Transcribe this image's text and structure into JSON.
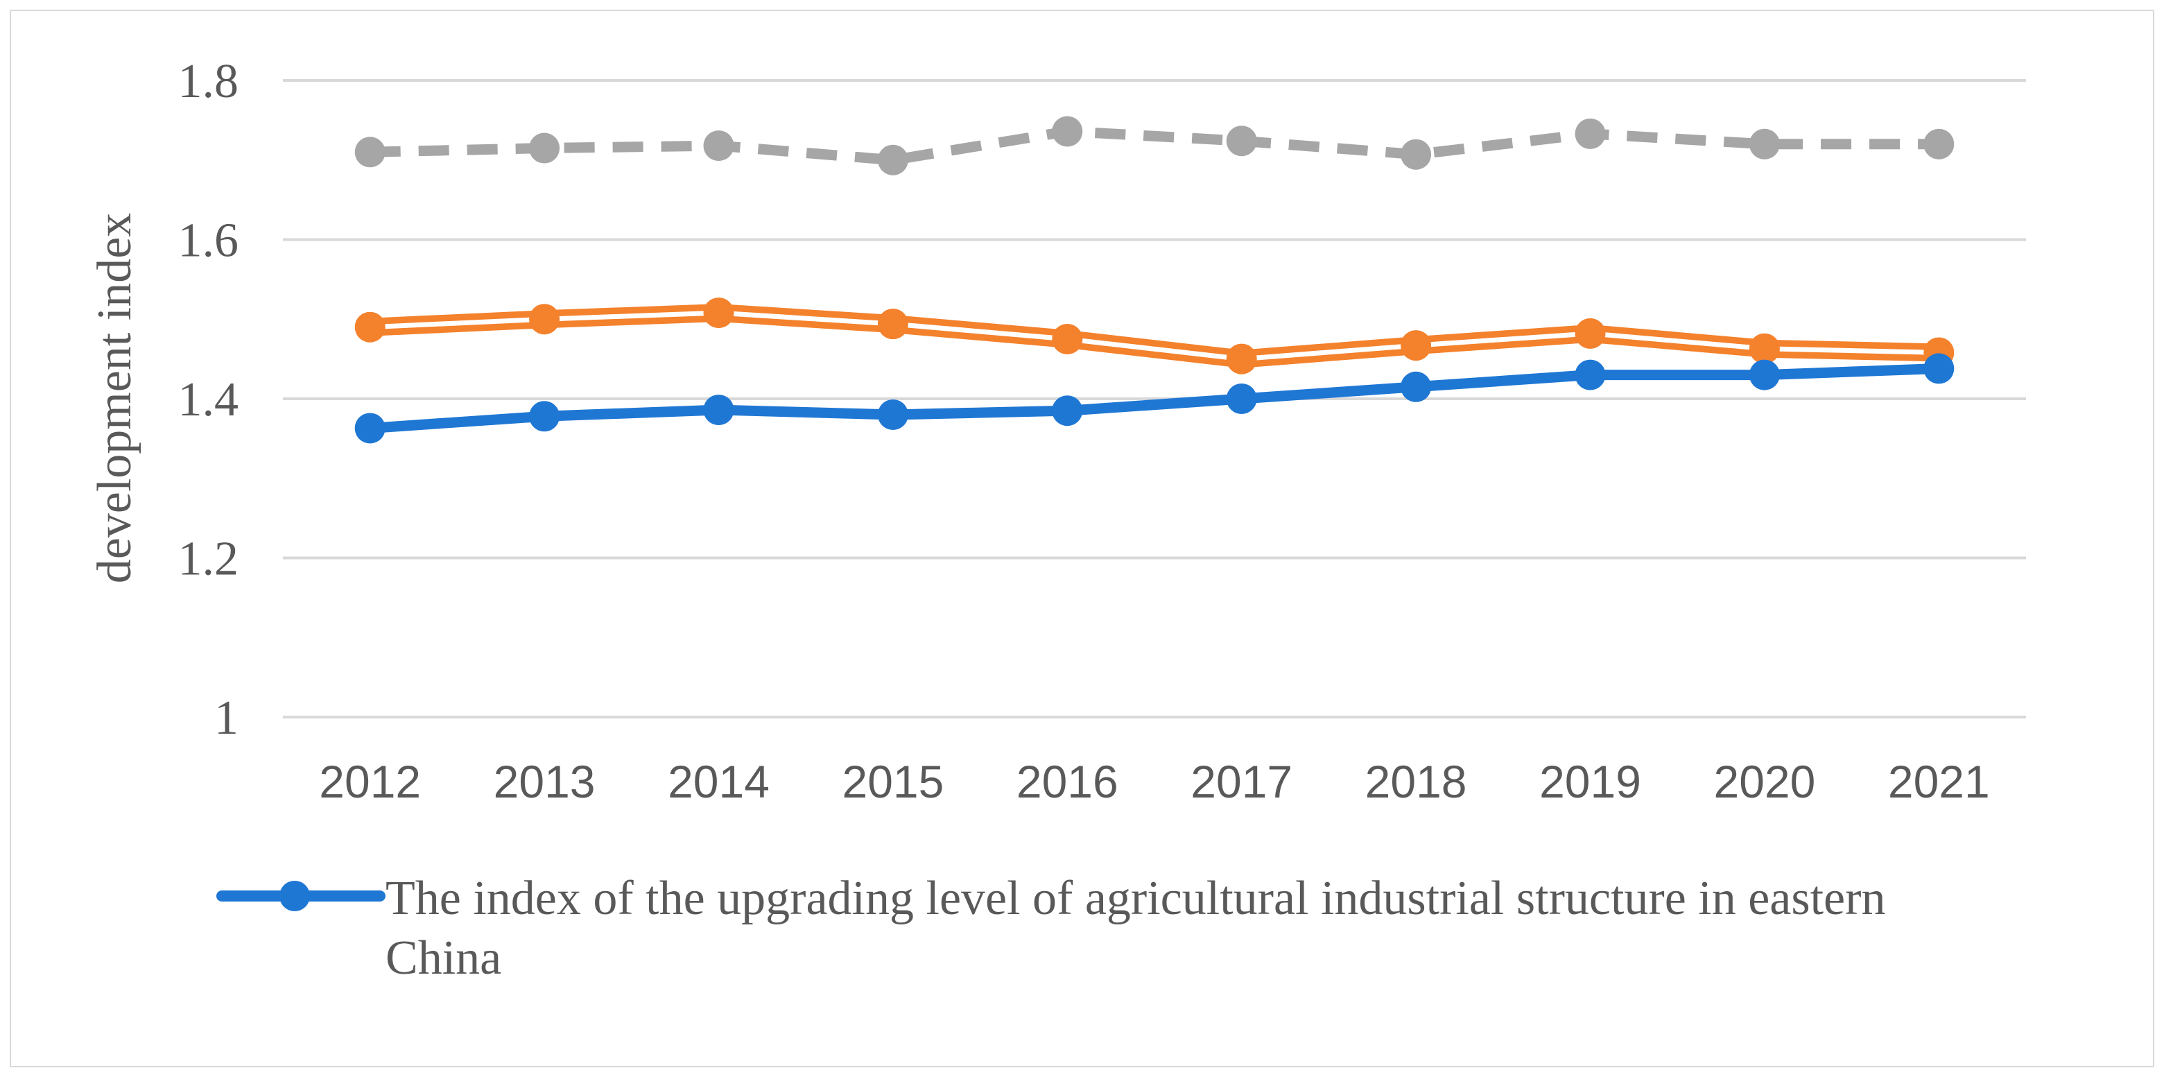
{
  "chart_data": {
    "type": "line",
    "title": "",
    "xlabel": "",
    "ylabel": "development index",
    "ylim": [
      1,
      1.8
    ],
    "yticks": [
      "1",
      "1.2",
      "1.4",
      "1.6",
      "1.8"
    ],
    "ytick_values": [
      1,
      1.2,
      1.4,
      1.6,
      1.8
    ],
    "grid": true,
    "legend_position": "bottom",
    "categories": [
      "2012",
      "2013",
      "2014",
      "2015",
      "2016",
      "2017",
      "2018",
      "2019",
      "2020",
      "2021"
    ],
    "series": [
      {
        "name": "The index of the upgrading level of agricultural industrial structure in eastern China",
        "style": "solid",
        "color": "#1f77d4",
        "values": [
          1.363,
          1.378,
          1.386,
          1.38,
          1.385,
          1.4,
          1.415,
          1.43,
          1.43,
          1.438
        ]
      },
      {
        "name": "",
        "style": "double",
        "color": "#f4812c",
        "values": [
          1.49,
          1.5,
          1.508,
          1.494,
          1.475,
          1.45,
          1.467,
          1.482,
          1.463,
          1.458
        ]
      },
      {
        "name": "",
        "style": "dashed",
        "color": "#a6a6a6",
        "values": [
          1.71,
          1.715,
          1.718,
          1.7,
          1.736,
          1.724,
          1.707,
          1.733,
          1.72,
          1.72
        ]
      }
    ]
  },
  "legend": {
    "line1": "The index of the upgrading level of agricultural industrial structure in eastern",
    "line2": "China"
  }
}
